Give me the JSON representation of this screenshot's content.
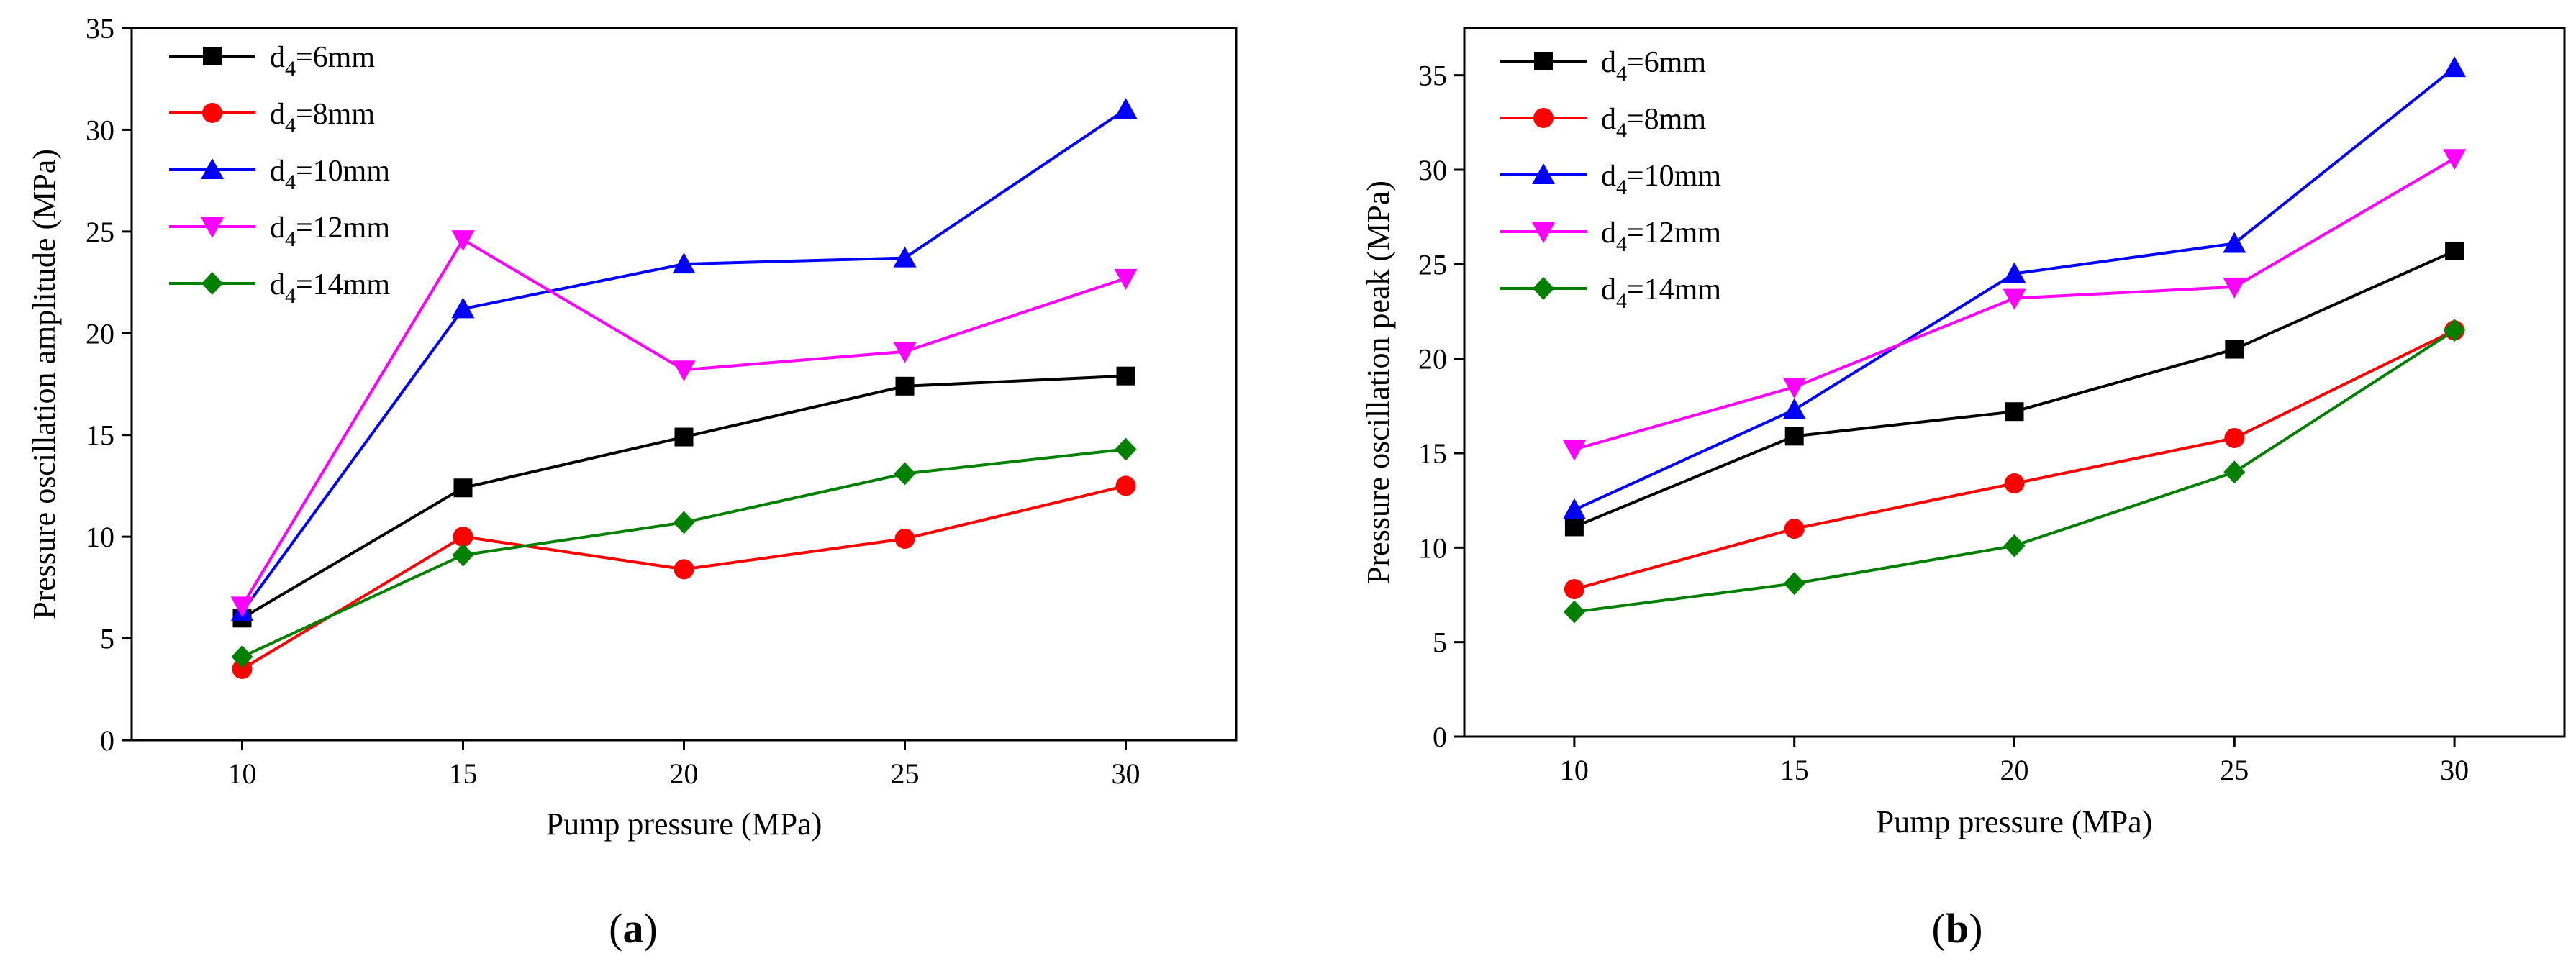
{
  "chart_data": [
    {
      "type": "line",
      "panel_label": "(a)",
      "panel_letter": "a",
      "xlabel": "Pump pressure (MPa)",
      "ylabel": "Pressure  oscillation amplitude  (MPa)",
      "xlim": [
        7.5,
        32.5
      ],
      "ylim": [
        0,
        35
      ],
      "x_ticks": [
        10,
        15,
        20,
        25,
        30
      ],
      "y_ticks": [
        0,
        5,
        10,
        15,
        20,
        25,
        30,
        35
      ],
      "x": [
        10,
        15,
        20,
        25,
        30
      ],
      "series": [
        {
          "name": "d4=6mm",
          "legend_main": "d",
          "legend_sub": "4",
          "legend_rest": "=6mm",
          "color": "#000000",
          "marker": "square",
          "values": [
            6.0,
            12.4,
            14.9,
            17.4,
            17.9
          ]
        },
        {
          "name": "d4=8mm",
          "legend_main": "d",
          "legend_sub": "4",
          "legend_rest": "=8mm",
          "color": "#ff0000",
          "marker": "circle",
          "values": [
            3.5,
            10.0,
            8.4,
            9.9,
            12.5
          ]
        },
        {
          "name": "d4=10mm",
          "legend_main": "d",
          "legend_sub": "4",
          "legend_rest": "=10mm",
          "color": "#0000ff",
          "marker": "triangle-up",
          "values": [
            6.3,
            21.2,
            23.4,
            23.7,
            31.0
          ]
        },
        {
          "name": "d4=12mm",
          "legend_main": "d",
          "legend_sub": "4",
          "legend_rest": "=12mm",
          "color": "#ff00ff",
          "marker": "triangle-down",
          "values": [
            6.6,
            24.6,
            18.2,
            19.1,
            22.7
          ]
        },
        {
          "name": "d4=14mm",
          "legend_main": "d",
          "legend_sub": "4",
          "legend_rest": "=14mm",
          "color": "#008000",
          "marker": "diamond",
          "values": [
            4.1,
            9.1,
            10.7,
            13.1,
            14.3
          ]
        }
      ]
    },
    {
      "type": "line",
      "panel_label": "(b)",
      "panel_letter": "b",
      "xlabel": "Pump pressure (MPa)",
      "ylabel": "Pressure  oscillation peak  (MPa)",
      "xlim": [
        7.5,
        32.5
      ],
      "ylim": [
        0,
        37.5
      ],
      "x_ticks": [
        10,
        15,
        20,
        25,
        30
      ],
      "y_ticks": [
        0,
        5,
        10,
        15,
        20,
        25,
        30,
        35
      ],
      "x": [
        10,
        15,
        20,
        25,
        30
      ],
      "series": [
        {
          "name": "d4=6mm",
          "legend_main": "d",
          "legend_sub": "4",
          "legend_rest": "=6mm",
          "color": "#000000",
          "marker": "square",
          "values": [
            11.1,
            15.9,
            17.2,
            20.5,
            25.7
          ]
        },
        {
          "name": "d4=8mm",
          "legend_main": "d",
          "legend_sub": "4",
          "legend_rest": "=8mm",
          "color": "#ff0000",
          "marker": "circle",
          "values": [
            7.8,
            11.0,
            13.4,
            15.8,
            21.5
          ]
        },
        {
          "name": "d4=10mm",
          "legend_main": "d",
          "legend_sub": "4",
          "legend_rest": "=10mm",
          "color": "#0000ff",
          "marker": "triangle-up",
          "values": [
            12.0,
            17.3,
            24.5,
            26.1,
            35.4
          ]
        },
        {
          "name": "d4=12mm",
          "legend_main": "d",
          "legend_sub": "4",
          "legend_rest": "=12mm",
          "color": "#ff00ff",
          "marker": "triangle-down",
          "values": [
            15.2,
            18.5,
            23.2,
            23.8,
            30.6
          ]
        },
        {
          "name": "d4=14mm",
          "legend_main": "d",
          "legend_sub": "4",
          "legend_rest": "=14mm",
          "color": "#008000",
          "marker": "diamond",
          "values": [
            6.6,
            8.1,
            10.1,
            14.0,
            21.5
          ]
        }
      ]
    }
  ]
}
